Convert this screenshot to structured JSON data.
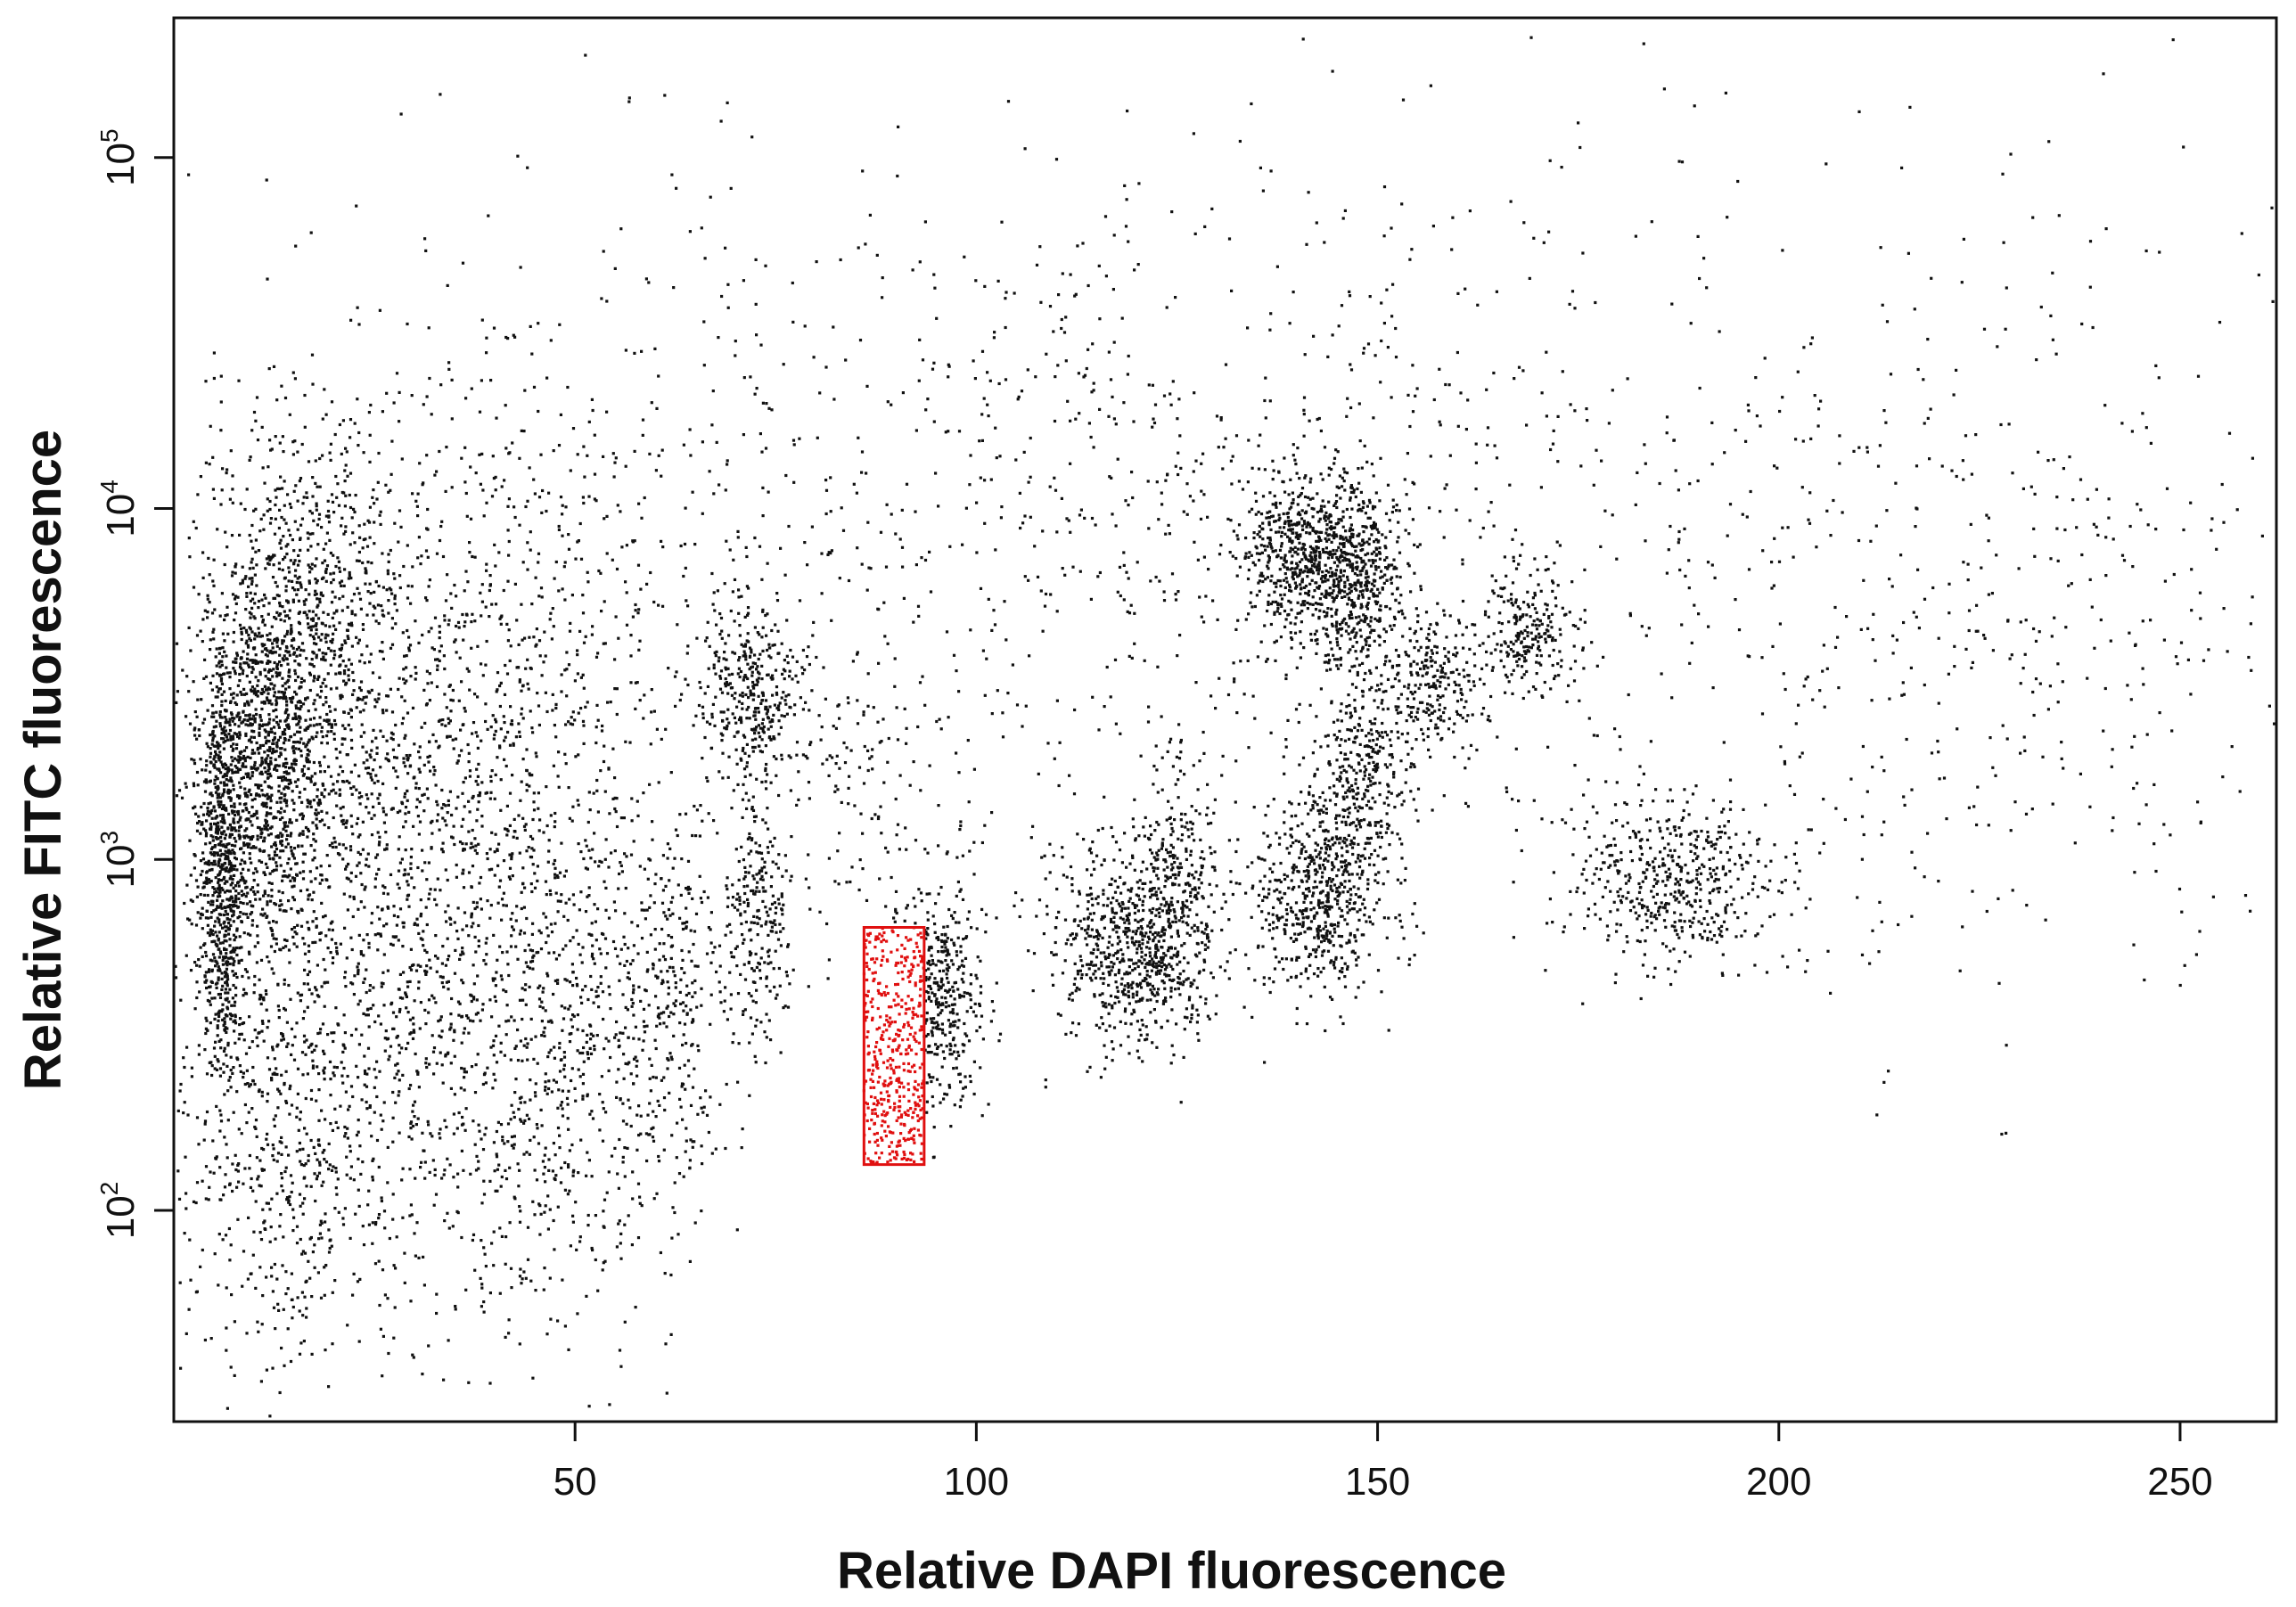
{
  "chart_data": {
    "type": "scatter",
    "title": "",
    "xlabel": "Relative DAPI fluorescence",
    "ylabel": "Relative FITC fluorescence",
    "xlim": [
      0,
      262
    ],
    "ylim": [
      25,
      250000
    ],
    "y_scale": "log",
    "x_ticks": [
      50,
      100,
      150,
      200,
      250
    ],
    "y_ticks": [
      {
        "value": 100,
        "base": "10",
        "exp": "2"
      },
      {
        "value": 1000,
        "base": "10",
        "exp": "3"
      },
      {
        "value": 10000,
        "base": "10",
        "exp": "4"
      },
      {
        "value": 100000,
        "base": "10",
        "exp": "5"
      }
    ],
    "grid": false,
    "point_color": "#111111",
    "gate_color": "#e01010",
    "gate": {
      "x_range": [
        86,
        93.5
      ],
      "y_range": [
        135,
        640
      ]
    },
    "clusters": [
      {
        "x": 6,
        "y": 900,
        "sx": 1.5,
        "sy": 0.28,
        "n": 700
      },
      {
        "x": 11,
        "y": 2000,
        "sx": 4,
        "sy": 0.3,
        "n": 1100
      },
      {
        "x": 17,
        "y": 4500,
        "sx": 6,
        "sy": 0.3,
        "n": 700
      },
      {
        "x": 25,
        "y": 600,
        "sx": 10,
        "sy": 0.55,
        "n": 1200
      },
      {
        "x": 12,
        "y": 180,
        "sx": 7,
        "sy": 0.35,
        "n": 500
      },
      {
        "x": 47,
        "y": 280,
        "sx": 8,
        "sy": 0.4,
        "n": 700
      },
      {
        "x": 40,
        "y": 3000,
        "sx": 12,
        "sy": 0.45,
        "n": 800
      },
      {
        "x": 62,
        "y": 350,
        "sx": 4,
        "sy": 0.3,
        "n": 300
      },
      {
        "x": 72,
        "y": 3000,
        "sx": 3,
        "sy": 0.12,
        "n": 350
      },
      {
        "x": 73,
        "y": 700,
        "sx": 2,
        "sy": 0.2,
        "n": 250
      },
      {
        "x": 95,
        "y": 400,
        "sx": 3,
        "sy": 0.17,
        "n": 500
      },
      {
        "x": 86,
        "y": 2000,
        "sx": 4,
        "sy": 0.2,
        "n": 100
      },
      {
        "x": 120,
        "y": 550,
        "sx": 5,
        "sy": 0.14,
        "n": 700
      },
      {
        "x": 125,
        "y": 900,
        "sx": 2.5,
        "sy": 0.15,
        "n": 250
      },
      {
        "x": 139,
        "y": 7500,
        "sx": 3,
        "sy": 0.12,
        "n": 450
      },
      {
        "x": 147,
        "y": 6500,
        "sx": 3,
        "sy": 0.13,
        "n": 600
      },
      {
        "x": 143,
        "y": 800,
        "sx": 4,
        "sy": 0.14,
        "n": 600
      },
      {
        "x": 148,
        "y": 1800,
        "sx": 3,
        "sy": 0.13,
        "n": 300
      },
      {
        "x": 157,
        "y": 3300,
        "sx": 3,
        "sy": 0.1,
        "n": 220
      },
      {
        "x": 169,
        "y": 4500,
        "sx": 3,
        "sy": 0.09,
        "n": 220
      },
      {
        "x": 187,
        "y": 850,
        "sx": 6,
        "sy": 0.12,
        "n": 500
      },
      {
        "x": 125,
        "y": 6000,
        "sx": 45,
        "sy": 0.55,
        "n": 900
      },
      {
        "x": 230,
        "y": 3500,
        "sx": 20,
        "sy": 0.5,
        "n": 350
      },
      {
        "x": 95,
        "y": 15000,
        "sx": 45,
        "sy": 0.4,
        "n": 350
      },
      {
        "x": 200,
        "y": 20000,
        "sx": 40,
        "sy": 0.5,
        "n": 180
      }
    ],
    "gate_points": 450
  }
}
